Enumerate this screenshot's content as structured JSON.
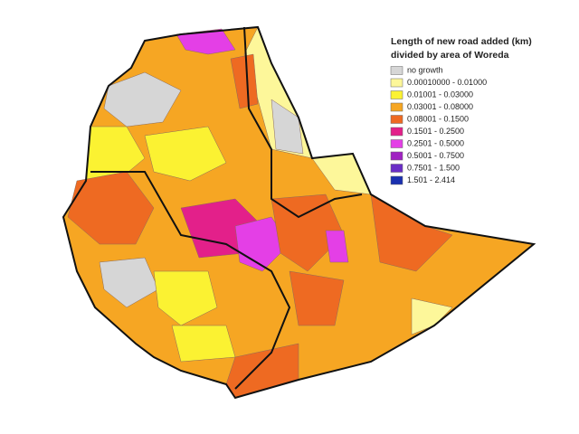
{
  "legend": {
    "title_lines": [
      "Length of new road added (km)",
      "divided by area of Woreda"
    ],
    "items": [
      {
        "label": "no growth",
        "color": "#d6d6d6"
      },
      {
        "label": "0.00010000 - 0.01000",
        "color": "#fdf79a"
      },
      {
        "label": "0.01001 - 0.03000",
        "color": "#fbf232"
      },
      {
        "label": "0.03001 - 0.08000",
        "color": "#f6a623"
      },
      {
        "label": "0.08001 - 0.1500",
        "color": "#ee6a22"
      },
      {
        "label": "0.1501 - 0.2500",
        "color": "#e3208a"
      },
      {
        "label": "0.2501 - 0.5000",
        "color": "#e43fe6"
      },
      {
        "label": "0.5001 - 0.7500",
        "color": "#a022c2"
      },
      {
        "label": "0.7501 - 1.500",
        "color": "#6a2ec6"
      },
      {
        "label": "1.501 - 2.414",
        "color": "#1a30b0"
      }
    ]
  }
}
